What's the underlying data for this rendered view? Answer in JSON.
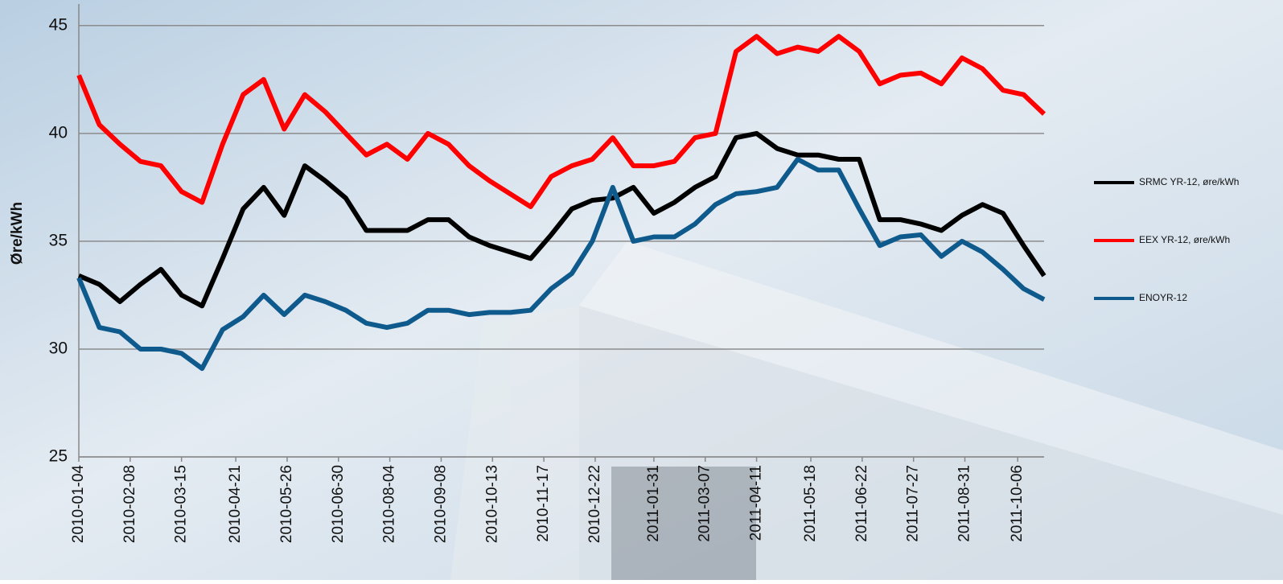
{
  "chart_data": {
    "type": "line",
    "y_label": "Øre/kWh",
    "x": [
      "2010-01-04",
      "2010-01-18",
      "2010-02-01",
      "2010-02-15",
      "2010-03-01",
      "2010-03-15",
      "2010-03-29",
      "2010-04-12",
      "2010-04-26",
      "2010-05-10",
      "2010-05-24",
      "2010-06-07",
      "2010-06-21",
      "2010-07-05",
      "2010-07-19",
      "2010-08-02",
      "2010-08-16",
      "2010-08-30",
      "2010-09-13",
      "2010-09-27",
      "2010-10-11",
      "2010-10-25",
      "2010-11-08",
      "2010-11-22",
      "2010-12-06",
      "2010-12-20",
      "2011-01-03",
      "2011-01-17",
      "2011-01-31",
      "2011-02-14",
      "2011-02-28",
      "2011-03-14",
      "2011-03-28",
      "2011-04-11",
      "2011-04-25",
      "2011-05-09",
      "2011-05-23",
      "2011-06-06",
      "2011-06-20",
      "2011-07-04",
      "2011-07-18",
      "2011-08-01",
      "2011-08-15",
      "2011-08-29",
      "2011-09-12",
      "2011-09-26",
      "2011-10-10",
      "2011-10-24"
    ],
    "series": [
      {
        "name": "SRMC YR-12, øre/kWh",
        "color": "#000000",
        "values": [
          33.4,
          33.0,
          32.2,
          33.0,
          33.7,
          32.5,
          32.0,
          34.2,
          36.5,
          37.5,
          36.2,
          38.5,
          37.8,
          37.0,
          35.5,
          35.5,
          35.5,
          36.0,
          36.0,
          35.2,
          34.8,
          34.5,
          34.2,
          35.3,
          36.5,
          36.9,
          37.0,
          37.5,
          36.3,
          36.8,
          37.5,
          38.0,
          39.8,
          40.0,
          39.3,
          39.0,
          39.0,
          38.8,
          38.8,
          36.0,
          36.0,
          35.8,
          35.5,
          36.2,
          36.7,
          36.3,
          34.8,
          33.4
        ]
      },
      {
        "name": "EEX YR-12, øre/kWh",
        "color": "#ff0000",
        "values": [
          42.7,
          40.4,
          39.5,
          38.7,
          38.5,
          37.3,
          36.8,
          39.5,
          41.8,
          42.5,
          40.2,
          41.8,
          41.0,
          40.0,
          39.0,
          39.5,
          38.8,
          40.0,
          39.5,
          38.5,
          37.8,
          37.2,
          36.6,
          38.0,
          38.5,
          38.8,
          39.8,
          38.5,
          38.5,
          38.7,
          39.8,
          40.0,
          43.8,
          44.5,
          43.7,
          44.0,
          43.8,
          44.5,
          43.8,
          42.3,
          42.7,
          42.8,
          42.3,
          43.5,
          43.0,
          42.0,
          41.8,
          40.9
        ]
      },
      {
        "name": "ENOYR-12",
        "color": "#0f5a8c",
        "values": [
          33.3,
          31.0,
          30.8,
          30.0,
          30.0,
          29.8,
          29.1,
          30.9,
          31.5,
          32.5,
          31.6,
          32.5,
          32.2,
          31.8,
          31.2,
          31.0,
          31.2,
          31.8,
          31.8,
          31.6,
          31.7,
          31.7,
          31.8,
          32.8,
          33.5,
          35.0,
          37.5,
          35.0,
          35.2,
          35.2,
          35.8,
          36.7,
          37.2,
          37.3,
          37.5,
          38.8,
          38.3,
          38.3,
          36.5,
          34.8,
          35.2,
          35.3,
          34.3,
          35.0,
          34.5,
          33.7,
          32.8,
          32.3
        ]
      }
    ],
    "xlim": [
      "2010-01-04",
      "2011-10-24"
    ],
    "xticks": [
      "2010-01-04",
      "2010-02-08",
      "2010-03-15",
      "2010-04-21",
      "2010-05-26",
      "2010-06-30",
      "2010-08-04",
      "2010-09-08",
      "2010-10-13",
      "2010-11-17",
      "2010-12-22",
      "2011-01-31",
      "2011-03-07",
      "2011-04-11",
      "2011-05-18",
      "2011-06-22",
      "2011-07-27",
      "2011-08-31",
      "2011-10-06"
    ],
    "ylim": [
      25,
      46
    ],
    "yticks": [
      25,
      30,
      35,
      40,
      45
    ],
    "grid": true,
    "legend": "right"
  }
}
